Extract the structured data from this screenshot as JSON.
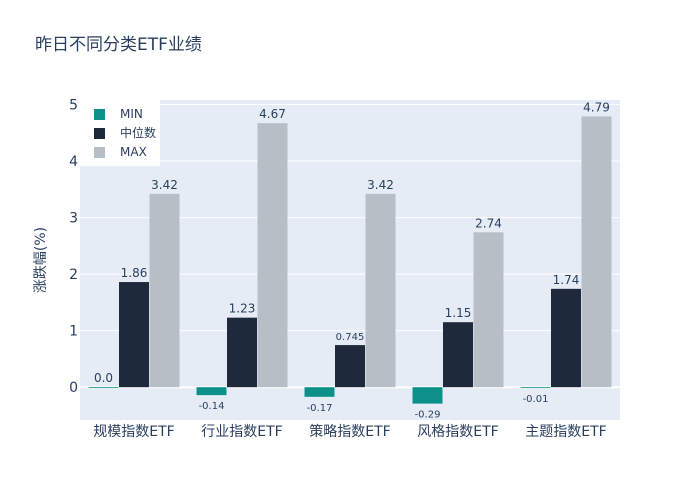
{
  "chart_data": {
    "type": "bar",
    "title": "昨日不同分类ETF业绩",
    "xlabel": "",
    "ylabel": "涨跌幅(%)",
    "categories": [
      "规模指数ETF",
      "行业指数ETF",
      "策略指数ETF",
      "风格指数ETF",
      "主题指数ETF"
    ],
    "series": [
      {
        "name": "MIN",
        "values": [
          0.0,
          -0.14,
          -0.17,
          -0.29,
          -0.01
        ],
        "labels": [
          "0.0",
          "-0.14",
          "-0.17",
          "-0.29",
          "-0.01"
        ],
        "color": "#0d8f8a"
      },
      {
        "name": "中位数",
        "values": [
          1.86,
          1.23,
          0.745,
          1.15,
          1.74
        ],
        "labels": [
          "1.86",
          "1.23",
          "0.745",
          "1.15",
          "1.74"
        ],
        "color": "#1e293b"
      },
      {
        "name": "MAX",
        "values": [
          3.42,
          4.67,
          3.42,
          2.74,
          4.79
        ],
        "labels": [
          "3.42",
          "4.67",
          "3.42",
          "2.74",
          "4.79"
        ],
        "color": "#b6bec6"
      }
    ],
    "ylim": [
      -0.58,
      5.08
    ],
    "yticks": [
      0,
      1,
      2,
      3,
      4,
      5
    ],
    "grid": true,
    "legend": "top-left",
    "plot_bg": "#e5ecf6"
  }
}
